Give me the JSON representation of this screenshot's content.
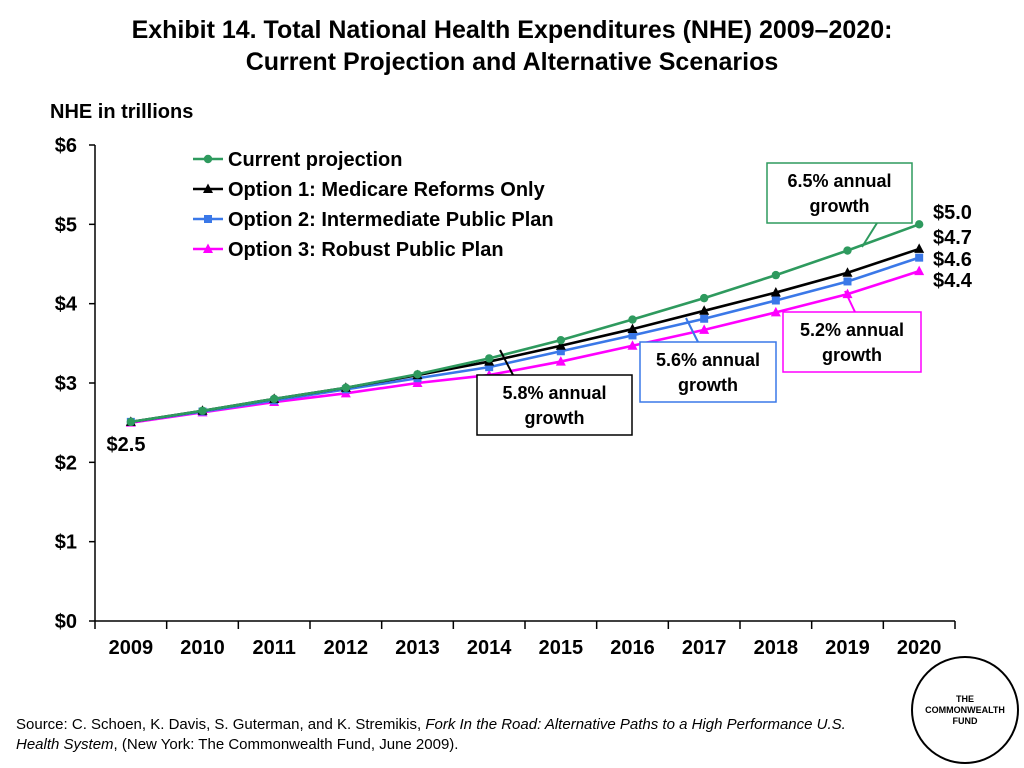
{
  "title_line1": "Exhibit 14. Total National Health Expenditures (NHE) 2009–2020:",
  "title_line2": "Current Projection and Alternative Scenarios",
  "source": {
    "prefix": "Source: C. Schoen, K. Davis, S. Guterman, and K. Stremikis, ",
    "title_italic": "Fork In the Road: Alternative Paths to a High Performance U.S. Health System",
    "suffix": ", (New York: The Commonwealth Fund, June 2009)."
  },
  "logo": {
    "line1": "THE",
    "line2": "COMMONWEALTH",
    "line3": "FUND"
  },
  "chart_data": {
    "type": "line",
    "ylabel": "NHE in trillions",
    "xlabel": "",
    "categories": [
      "2009",
      "2010",
      "2011",
      "2012",
      "2013",
      "2014",
      "2015",
      "2016",
      "2017",
      "2018",
      "2019",
      "2020"
    ],
    "ylim": [
      0,
      6
    ],
    "yticks": [
      "$0",
      "$1",
      "$2",
      "$3",
      "$4",
      "$5",
      "$6"
    ],
    "grid": false,
    "legend_position": "top-left",
    "series": [
      {
        "name": "Current projection",
        "color": "#2e9a5e",
        "marker": "circle",
        "values": [
          2.51,
          2.65,
          2.8,
          2.94,
          3.11,
          3.31,
          3.54,
          3.8,
          4.07,
          4.36,
          4.67,
          5.0
        ]
      },
      {
        "name": "Option 1: Medicare Reforms Only",
        "color": "#000000",
        "marker": "triangle",
        "values": [
          2.51,
          2.65,
          2.8,
          2.94,
          3.1,
          3.27,
          3.47,
          3.68,
          3.91,
          4.14,
          4.39,
          4.69
        ]
      },
      {
        "name": "Option 2: Intermediate Public Plan",
        "color": "#3a78e8",
        "marker": "square",
        "values": [
          2.51,
          2.64,
          2.78,
          2.92,
          3.06,
          3.2,
          3.4,
          3.6,
          3.81,
          4.04,
          4.28,
          4.58
        ]
      },
      {
        "name": "Option 3: Robust Public Plan",
        "color": "#ff00ff",
        "marker": "triangle",
        "values": [
          2.5,
          2.63,
          2.76,
          2.87,
          3.0,
          3.1,
          3.27,
          3.47,
          3.67,
          3.89,
          4.12,
          4.41
        ]
      }
    ],
    "start_label": "$2.5",
    "end_labels": [
      "$5.0",
      "$4.7",
      "$4.6",
      "$4.4"
    ],
    "callouts": [
      {
        "line1": "6.5% annual",
        "line2": "growth",
        "color": "#2e9a5e"
      },
      {
        "line1": "5.2% annual",
        "line2": "growth",
        "color": "#ff00ff"
      },
      {
        "line1": "5.6% annual",
        "line2": "growth",
        "color": "#3a78e8"
      },
      {
        "line1": "5.8% annual",
        "line2": "growth",
        "color": "#000000"
      }
    ]
  }
}
